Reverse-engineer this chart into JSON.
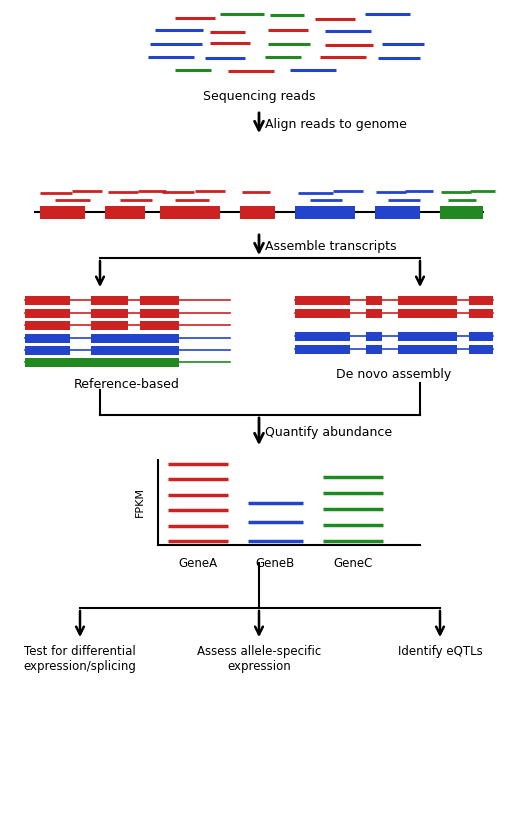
{
  "fig_width": 5.18,
  "fig_height": 8.17,
  "dpi": 100,
  "bg_color": "#ffffff",
  "red": "#cc2222",
  "blue": "#2244cc",
  "green": "#228822",
  "black": "#111111",
  "label_fontsize": 9,
  "step_labels": {
    "seq_reads": "Sequencing reads",
    "align": "Align reads to genome",
    "assemble": "Assemble transcripts",
    "ref_based": "Reference-based",
    "de_novo": "De novo assembly",
    "quantify": "Quantify abundance",
    "fpkm": "FPKM",
    "geneA": "GeneA",
    "geneB": "GeneB",
    "geneC": "GeneC",
    "out1": "Test for differential\nexpression/splicing",
    "out2": "Assess allele-specific\nexpression",
    "out3": "Identify eQTLs"
  }
}
